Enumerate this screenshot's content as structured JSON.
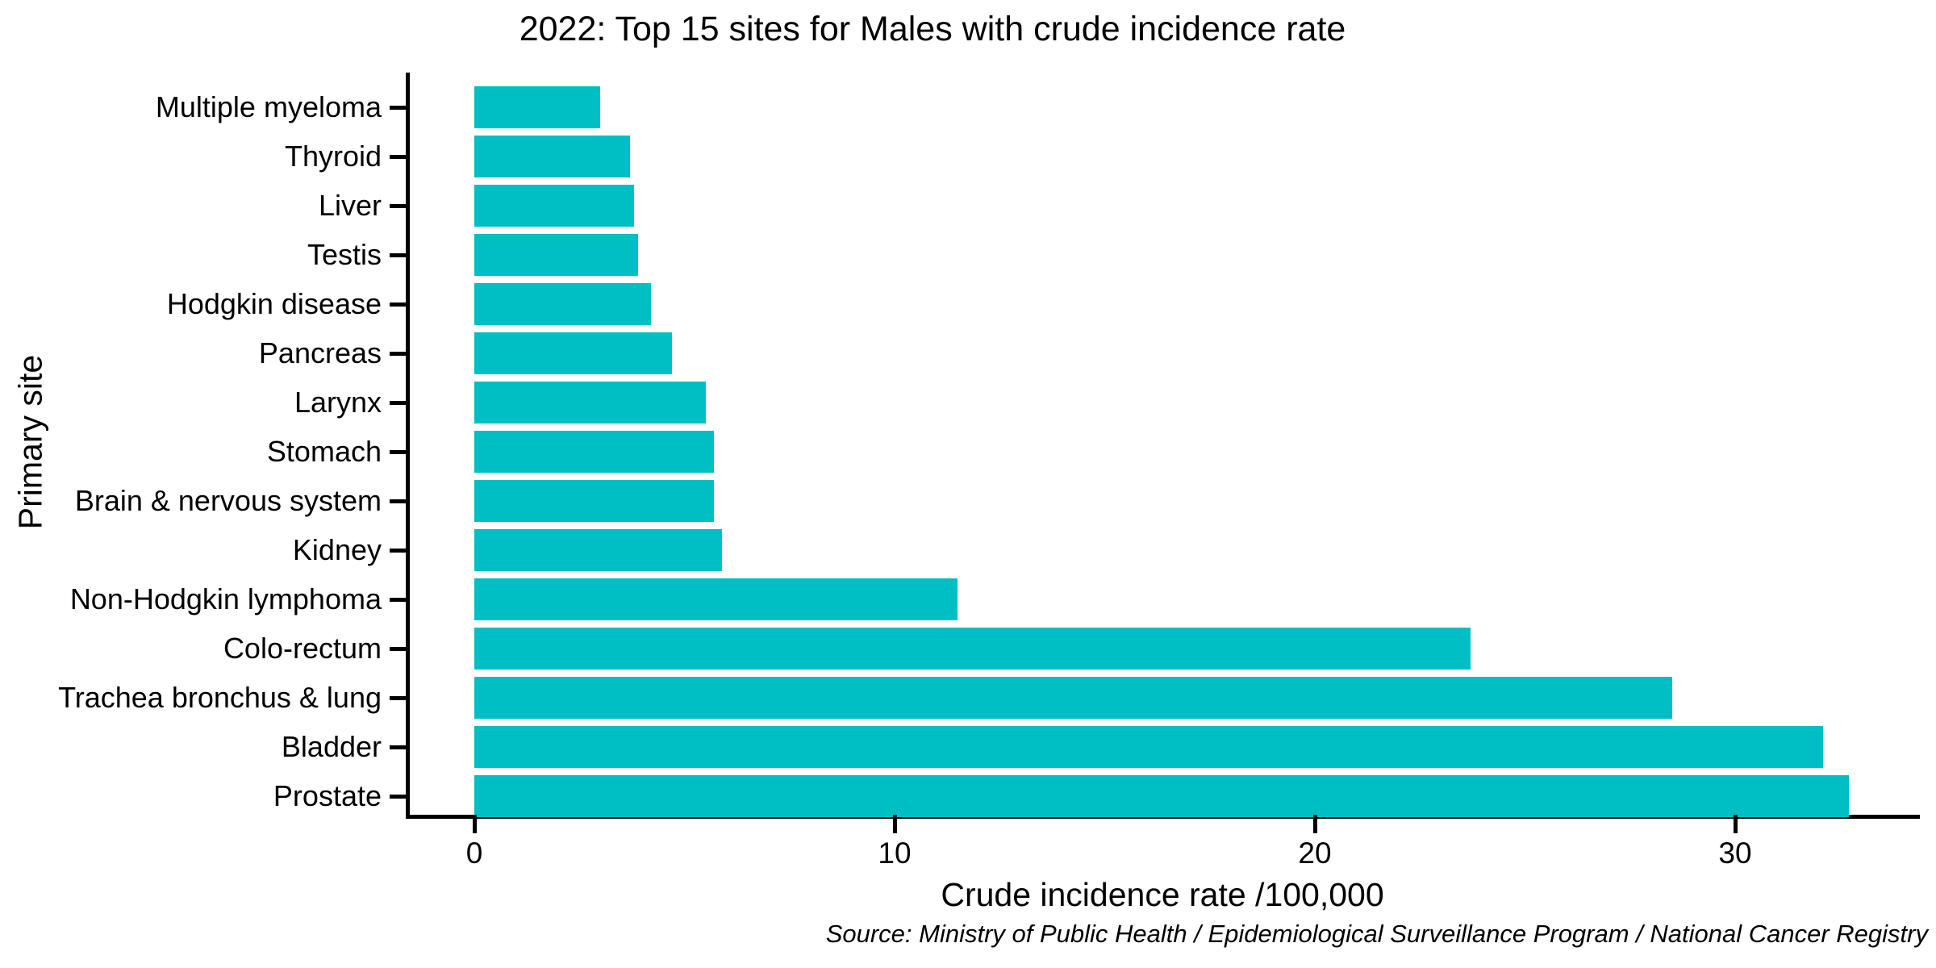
{
  "chart_data": {
    "type": "bar",
    "orientation": "horizontal",
    "title": "2022: Top 15 sites for Males with crude incidence rate",
    "xlabel": "Crude incidence rate /100,000",
    "ylabel": "Primary site",
    "source_note": "Source: Ministry of Public Health / Epidemiological Surveillance Program / National Cancer Registry",
    "categories": [
      "Multiple myeloma",
      "Thyroid",
      "Liver",
      "Testis",
      "Hodgkin disease",
      "Pancreas",
      "Larynx",
      "Stomach",
      "Brain & nervous system",
      "Kidney",
      "Non-Hodgkin lymphoma",
      "Colo-rectum",
      "Trachea bronchus & lung",
      "Bladder",
      "Prostate"
    ],
    "values": [
      3.0,
      3.7,
      3.8,
      3.9,
      4.2,
      4.7,
      5.5,
      5.7,
      5.7,
      5.9,
      11.5,
      23.7,
      28.5,
      32.1,
      32.7
    ],
    "xticks": [
      0,
      10,
      20,
      30
    ],
    "xlim": [
      0,
      34.4
    ],
    "grid": false,
    "legend": "none",
    "bar_color": "#00BFC4",
    "axis_color": "#000000",
    "text_color": "#000000",
    "background_color": "#ffffff"
  }
}
